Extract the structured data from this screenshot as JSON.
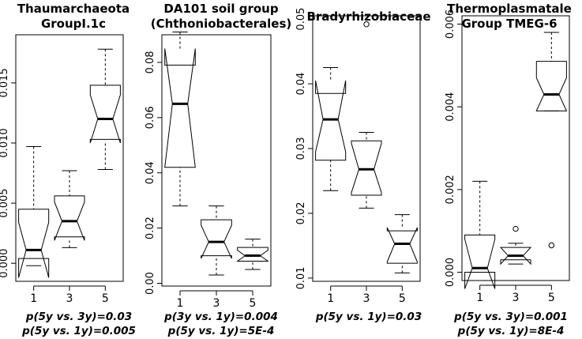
{
  "chart_data": [
    {
      "type": "boxplot",
      "title_lines": [
        "Thaumarchaeota",
        "GroupI.1c"
      ],
      "categories": [
        "1",
        "3",
        "5"
      ],
      "ylim": [
        -0.0015,
        0.019
      ],
      "yticks": [
        0.0,
        0.005,
        0.01,
        0.015
      ],
      "ytick_labels": [
        "0.000",
        "0.005",
        "0.010",
        "0.015"
      ],
      "boxes": [
        {
          "label": "1",
          "min": -0.0002,
          "q1": 0.0004,
          "median": 0.0011,
          "q3": 0.0045,
          "max": 0.0097,
          "notch_low": -0.0012,
          "notch_high": 0.0034,
          "outliers": []
        },
        {
          "label": "3",
          "min": 0.0013,
          "q1": 0.0022,
          "median": 0.0035,
          "q3": 0.0056,
          "max": 0.0077,
          "notch_low": 0.0019,
          "notch_high": 0.0051,
          "outliers": []
        },
        {
          "label": "5",
          "min": 0.0078,
          "q1": 0.0103,
          "median": 0.012,
          "q3": 0.0148,
          "max": 0.0178,
          "notch_low": 0.01,
          "notch_high": 0.014,
          "outliers": []
        }
      ],
      "stats": [
        "p(5y vs. 3y)=0.03",
        "p(5y vs. 1y)=0.005"
      ]
    },
    {
      "type": "boxplot",
      "title_lines": [
        "DA101 soil group",
        "(Chthoniobacterales)"
      ],
      "categories": [
        "1",
        "3",
        "5"
      ],
      "ylim": [
        -0.001,
        0.09
      ],
      "yticks": [
        0.0,
        0.02,
        0.04,
        0.06,
        0.08
      ],
      "ytick_labels": [
        "0.00",
        "0.02",
        "0.04",
        "0.06",
        "0.08"
      ],
      "boxes": [
        {
          "label": "1",
          "min": 0.028,
          "q1": 0.042,
          "median": 0.065,
          "q3": 0.079,
          "max": 0.091,
          "notch_low": 0.042,
          "notch_high": 0.085,
          "outliers": []
        },
        {
          "label": "3",
          "min": 0.003,
          "q1": 0.01,
          "median": 0.015,
          "q3": 0.023,
          "max": 0.028,
          "notch_low": 0.009,
          "notch_high": 0.021,
          "outliers": []
        },
        {
          "label": "5",
          "min": 0.005,
          "q1": 0.008,
          "median": 0.01,
          "q3": 0.013,
          "max": 0.016,
          "notch_low": 0.008,
          "notch_high": 0.012,
          "outliers": []
        }
      ],
      "stats": [
        "p(3y vs. 1y)=0.004",
        "p(5y vs. 1y)=5E-4"
      ]
    },
    {
      "type": "boxplot",
      "title_lines": [
        "Bradyrhizobiaceae"
      ],
      "categories": [
        "1",
        "3",
        "5"
      ],
      "ylim": [
        0.0095,
        0.0505
      ],
      "yticks": [
        0.01,
        0.02,
        0.03,
        0.04,
        0.05
      ],
      "ytick_labels": [
        "0.01",
        "0.02",
        "0.03",
        "0.04",
        "0.05"
      ],
      "boxes": [
        {
          "label": "1",
          "min": 0.0235,
          "q1": 0.0282,
          "median": 0.0345,
          "q3": 0.0385,
          "max": 0.0425,
          "notch_low": 0.0295,
          "notch_high": 0.0405,
          "outliers": []
        },
        {
          "label": "3",
          "min": 0.0208,
          "q1": 0.0228,
          "median": 0.0268,
          "q3": 0.0312,
          "max": 0.0325,
          "notch_low": 0.0232,
          "notch_high": 0.0308,
          "outliers": [
            0.0492
          ]
        },
        {
          "label": "5",
          "min": 0.0108,
          "q1": 0.0123,
          "median": 0.0153,
          "q3": 0.0173,
          "max": 0.0198,
          "notch_low": 0.0125,
          "notch_high": 0.0178,
          "outliers": []
        }
      ],
      "stats": [
        "p(5y vs. 1y)=0.03"
      ]
    },
    {
      "type": "boxplot",
      "title_lines": [
        "Thermoplasmatale",
        "Group TMEG-6"
      ],
      "categories": [
        "1",
        "3",
        "5"
      ],
      "ylim": [
        -0.0002,
        0.0062
      ],
      "yticks": [
        0.0,
        0.002,
        0.004,
        0.006
      ],
      "ytick_labels": [
        "0.000",
        "0.002",
        "0.004",
        "0.006"
      ],
      "boxes": [
        {
          "label": "1",
          "min": 0.0,
          "q1": 0.0,
          "median": 0.0001,
          "q3": 0.0009,
          "max": 0.0022,
          "notch_low": -0.0004,
          "notch_high": 0.0008,
          "outliers": []
        },
        {
          "label": "3",
          "min": 0.0002,
          "q1": 0.0003,
          "median": 0.0004,
          "q3": 0.0006,
          "max": 0.0007,
          "notch_low": 0.0002,
          "notch_high": 0.0006,
          "outliers": [
            0.00105
          ]
        },
        {
          "label": "5",
          "min": 0.0039,
          "q1": 0.0039,
          "median": 0.0043,
          "q3": 0.0051,
          "max": 0.0058,
          "notch_low": 0.0039,
          "notch_high": 0.0047,
          "outliers": [
            0.00065
          ]
        }
      ],
      "stats": [
        "p(5y vs. 3y)=0.001",
        "p(5y vs. 1y)=8E-4"
      ]
    }
  ]
}
